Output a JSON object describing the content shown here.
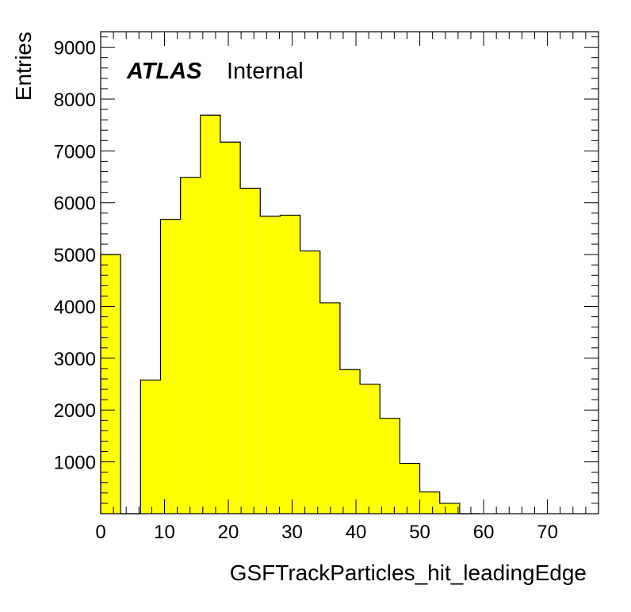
{
  "chart_data": {
    "type": "bar",
    "style": "histogram",
    "title": "",
    "xlabel": "GSFTrackParticles_hit_leadingEdge",
    "ylabel": "Entries",
    "experiment_label": "ATLAS",
    "status_label": "Internal",
    "xlim": [
      0,
      78
    ],
    "ylim": [
      0,
      9300
    ],
    "x_ticks": [
      0,
      10,
      20,
      30,
      40,
      50,
      60,
      70
    ],
    "y_ticks": [
      1000,
      2000,
      3000,
      4000,
      5000,
      6000,
      7000,
      8000,
      9000
    ],
    "bin_width": 3.125,
    "bins": [
      {
        "x_low": 0.0,
        "x_high": 3.125,
        "value": 5000
      },
      {
        "x_low": 3.125,
        "x_high": 6.25,
        "value": 0
      },
      {
        "x_low": 6.25,
        "x_high": 9.375,
        "value": 2580
      },
      {
        "x_low": 9.375,
        "x_high": 12.5,
        "value": 5680
      },
      {
        "x_low": 12.5,
        "x_high": 15.625,
        "value": 6490
      },
      {
        "x_low": 15.625,
        "x_high": 18.75,
        "value": 7690
      },
      {
        "x_low": 18.75,
        "x_high": 21.875,
        "value": 7170
      },
      {
        "x_low": 21.875,
        "x_high": 25.0,
        "value": 6280
      },
      {
        "x_low": 25.0,
        "x_high": 28.125,
        "value": 5740
      },
      {
        "x_low": 28.125,
        "x_high": 31.25,
        "value": 5760
      },
      {
        "x_low": 31.25,
        "x_high": 34.375,
        "value": 5070
      },
      {
        "x_low": 34.375,
        "x_high": 37.5,
        "value": 4070
      },
      {
        "x_low": 37.5,
        "x_high": 40.625,
        "value": 2780
      },
      {
        "x_low": 40.625,
        "x_high": 43.75,
        "value": 2500
      },
      {
        "x_low": 43.75,
        "x_high": 46.875,
        "value": 1840
      },
      {
        "x_low": 46.875,
        "x_high": 50.0,
        "value": 970
      },
      {
        "x_low": 50.0,
        "x_high": 53.125,
        "value": 420
      },
      {
        "x_low": 53.125,
        "x_high": 56.25,
        "value": 200
      },
      {
        "x_low": 56.25,
        "x_high": 59.375,
        "value": 0
      }
    ],
    "fill_color": "#ffff00",
    "line_color": "#000000",
    "grid": false
  }
}
